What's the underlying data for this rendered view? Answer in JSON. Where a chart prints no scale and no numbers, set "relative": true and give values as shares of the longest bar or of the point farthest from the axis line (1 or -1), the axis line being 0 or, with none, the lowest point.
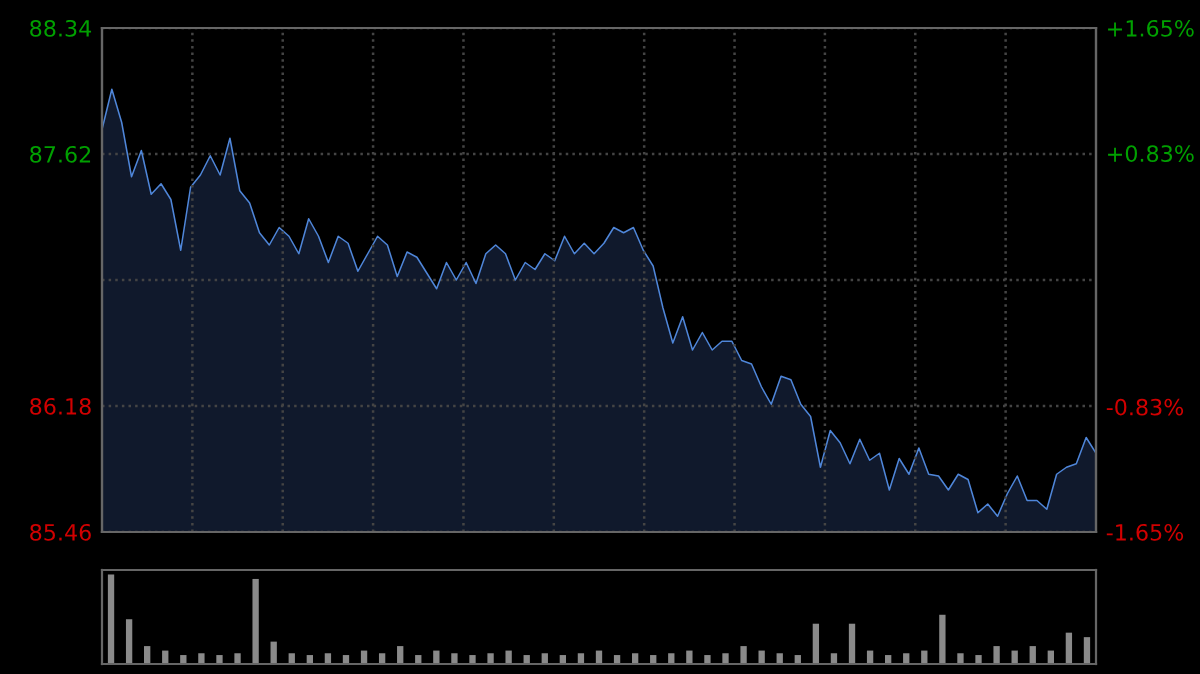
{
  "chart_data": [
    {
      "type": "area",
      "categories": [
        null,
        null,
        null,
        null,
        null,
        null,
        null,
        null,
        null,
        null,
        null,
        null,
        null,
        null,
        null,
        null,
        null,
        null,
        null,
        null,
        null,
        null,
        null,
        null,
        null,
        null,
        null,
        null,
        null,
        null,
        null,
        null,
        null,
        null,
        null,
        null,
        null,
        null,
        null,
        null,
        null,
        null,
        null,
        null,
        null,
        null,
        null,
        null,
        null,
        null,
        null,
        null,
        null,
        null,
        null,
        null,
        null,
        null,
        null,
        null,
        null,
        null,
        null,
        null,
        null,
        null,
        null,
        null,
        null,
        null,
        null,
        null,
        null,
        null,
        null,
        null,
        null,
        null,
        null,
        null,
        null,
        null,
        null,
        null,
        null,
        null,
        null,
        null,
        null,
        null,
        null,
        null,
        null,
        null,
        null,
        null,
        null,
        null,
        null,
        null,
        null,
        null
      ],
      "ylim": [
        85.46,
        88.34
      ],
      "yticks": [
        85.46,
        86.18,
        {
          "value": 86.9,
          "label": null
        },
        87.62,
        88.34
      ],
      "y2lim": [
        -1.65,
        1.65
      ],
      "y2ticks": [
        {
          "value": -1.65,
          "label": "-1.65%"
        },
        {
          "value": -0.83,
          "label": "-0.83%"
        },
        {
          "value": 0,
          "label": null
        },
        {
          "value": 0.83,
          "label": "+0.83%"
        },
        {
          "value": 1.65,
          "label": "+1.65%"
        }
      ],
      "grid": true,
      "tick_labels": "y",
      "series": [
        {
          "color": "#4f86d9",
          "values": [
            87.76,
            87.99,
            87.8,
            87.49,
            87.64,
            87.39,
            87.45,
            87.36,
            87.07,
            87.43,
            87.5,
            87.61,
            87.5,
            87.71,
            87.41,
            87.34,
            87.17,
            87.1,
            87.2,
            87.15,
            87.05,
            87.25,
            87.15,
            87.0,
            87.15,
            87.11,
            86.95,
            87.05,
            87.15,
            87.1,
            86.92,
            87.06,
            87.03,
            86.94,
            86.85,
            87.0,
            86.9,
            87.0,
            86.88,
            87.05,
            87.1,
            87.05,
            86.9,
            87.0,
            86.96,
            87.05,
            87.01,
            87.15,
            87.05,
            87.11,
            87.05,
            87.11,
            87.2,
            87.17,
            87.2,
            87.07,
            86.98,
            86.74,
            86.54,
            86.69,
            86.5,
            86.6,
            86.5,
            86.55,
            86.55,
            86.44,
            86.42,
            86.29,
            86.19,
            86.35,
            86.33,
            86.19,
            86.12,
            85.83,
            86.04,
            85.97,
            85.85,
            85.99,
            85.87,
            85.91,
            85.7,
            85.88,
            85.79,
            85.94,
            85.79,
            85.78,
            85.7,
            85.79,
            85.76,
            85.57,
            85.62,
            85.55,
            85.68,
            85.78,
            85.64,
            85.64,
            85.59,
            85.79,
            85.83,
            85.85,
            86.0,
            85.91
          ]
        }
      ]
    },
    {
      "type": "bar",
      "relative": true,
      "tick_labels": false,
      "categories": [
        null,
        null,
        null,
        null,
        null,
        null,
        null,
        null,
        null,
        null,
        null,
        null,
        null,
        null,
        null,
        null,
        null,
        null,
        null,
        null,
        null,
        null,
        null,
        null,
        null,
        null,
        null,
        null,
        null,
        null,
        null,
        null,
        null,
        null,
        null,
        null,
        null,
        null,
        null,
        null,
        null,
        null,
        null,
        null,
        null,
        null,
        null,
        null,
        null,
        null,
        null,
        null,
        null,
        null,
        null
      ],
      "series": [
        {
          "color": "#8a8a8a",
          "values": [
            1.0,
            0.5,
            0.2,
            0.15,
            0.1,
            0.12,
            0.1,
            0.12,
            0.95,
            0.25,
            0.12,
            0.1,
            0.12,
            0.1,
            0.15,
            0.12,
            0.2,
            0.1,
            0.15,
            0.12,
            0.1,
            0.12,
            0.15,
            0.1,
            0.12,
            0.1,
            0.12,
            0.15,
            0.1,
            0.12,
            0.1,
            0.12,
            0.15,
            0.1,
            0.12,
            0.2,
            0.15,
            0.12,
            0.1,
            0.45,
            0.12,
            0.45,
            0.15,
            0.1,
            0.12,
            0.15,
            0.55,
            0.12,
            0.1,
            0.2,
            0.15,
            0.2,
            0.15,
            0.35,
            0.3
          ]
        }
      ]
    }
  ]
}
